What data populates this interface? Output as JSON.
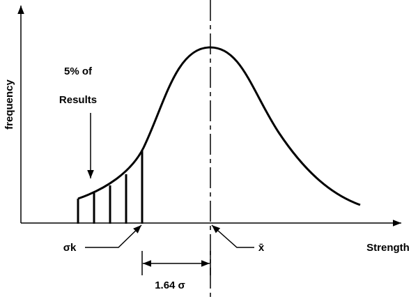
{
  "labels": {
    "y_axis": "frequency",
    "annotation_line1": "5% of",
    "annotation_line2": "Results",
    "sigma_k": "σk",
    "mean": "x̄",
    "offset": "1.64 σ",
    "x_axis": "Strength"
  }
}
